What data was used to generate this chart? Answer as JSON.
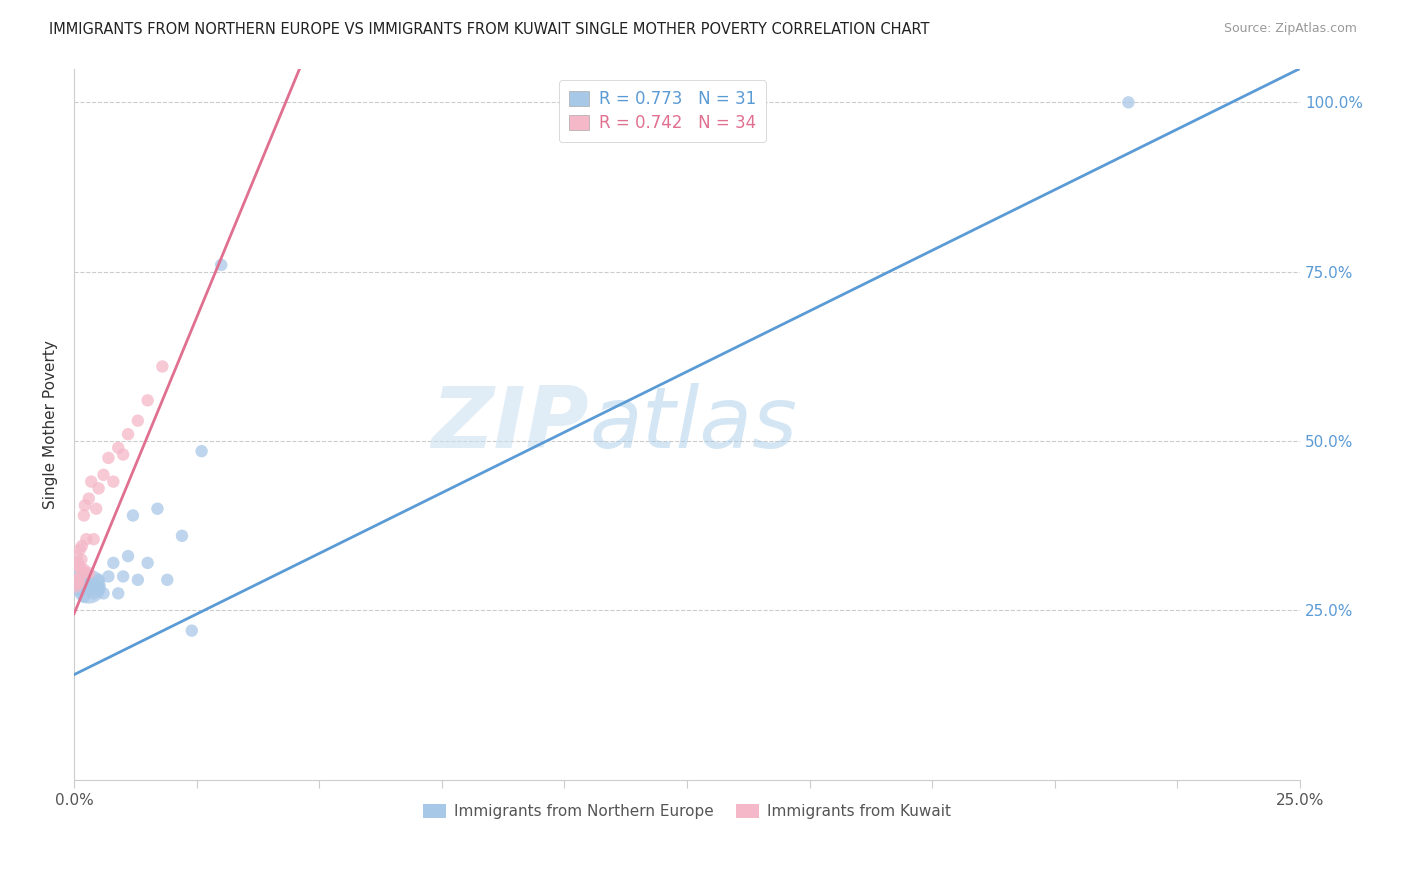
{
  "title": "IMMIGRANTS FROM NORTHERN EUROPE VS IMMIGRANTS FROM KUWAIT SINGLE MOTHER POVERTY CORRELATION CHART",
  "source": "Source: ZipAtlas.com",
  "ylabel": "Single Mother Poverty",
  "watermark_zip": "ZIP",
  "watermark_atlas": "atlas",
  "legend_blue_text": "R = 0.773   N = 31",
  "legend_pink_text": "R = 0.742   N = 34",
  "legend_label_blue": "Immigrants from Northern Europe",
  "legend_label_pink": "Immigrants from Kuwait",
  "blue_color": "#a8c8e8",
  "pink_color": "#f4b8c8",
  "line_blue": "#5b9bd5",
  "line_pink": "#e07090",
  "legend_r_blue": "#5b9bd5",
  "legend_r_pink": "#e07090",
  "blue_scatter_x": [
    0.0005,
    0.001,
    0.001,
    0.0015,
    0.002,
    0.002,
    0.002,
    0.003,
    0.003,
    0.003,
    0.004,
    0.004,
    0.005,
    0.005,
    0.005,
    0.006,
    0.007,
    0.008,
    0.009,
    0.01,
    0.011,
    0.012,
    0.013,
    0.015,
    0.017,
    0.019,
    0.022,
    0.024,
    0.026,
    0.03,
    0.215
  ],
  "blue_scatter_y": [
    0.295,
    0.295,
    0.28,
    0.29,
    0.285,
    0.295,
    0.27,
    0.285,
    0.28,
    0.29,
    0.275,
    0.29,
    0.285,
    0.295,
    0.28,
    0.275,
    0.3,
    0.32,
    0.275,
    0.3,
    0.33,
    0.39,
    0.295,
    0.32,
    0.4,
    0.295,
    0.36,
    0.22,
    0.485,
    0.76,
    1.0
  ],
  "blue_scatter_sizes": [
    200,
    80,
    80,
    80,
    80,
    80,
    80,
    600,
    80,
    80,
    80,
    80,
    80,
    80,
    80,
    80,
    80,
    80,
    80,
    80,
    80,
    80,
    80,
    80,
    80,
    80,
    80,
    80,
    80,
    80,
    80
  ],
  "pink_scatter_x": [
    0.0002,
    0.0003,
    0.0004,
    0.0005,
    0.0006,
    0.0007,
    0.0008,
    0.0009,
    0.001,
    0.001,
    0.0012,
    0.0014,
    0.0015,
    0.0016,
    0.0018,
    0.002,
    0.002,
    0.0022,
    0.0025,
    0.003,
    0.003,
    0.0035,
    0.004,
    0.0045,
    0.005,
    0.006,
    0.007,
    0.008,
    0.009,
    0.01,
    0.011,
    0.013,
    0.015,
    0.018
  ],
  "pink_scatter_y": [
    0.295,
    0.285,
    0.29,
    0.33,
    0.29,
    0.295,
    0.32,
    0.29,
    0.315,
    0.295,
    0.34,
    0.31,
    0.325,
    0.345,
    0.305,
    0.39,
    0.31,
    0.405,
    0.355,
    0.415,
    0.305,
    0.44,
    0.355,
    0.4,
    0.43,
    0.45,
    0.475,
    0.44,
    0.49,
    0.48,
    0.51,
    0.53,
    0.56,
    0.61
  ],
  "pink_scatter_sizes": [
    80,
    80,
    80,
    80,
    80,
    80,
    80,
    80,
    80,
    80,
    80,
    80,
    80,
    80,
    80,
    80,
    80,
    80,
    80,
    80,
    80,
    80,
    80,
    80,
    80,
    80,
    80,
    80,
    80,
    80,
    80,
    80,
    80,
    80
  ],
  "blue_line_x": [
    0.0,
    0.25
  ],
  "blue_line_y": [
    0.155,
    1.05
  ],
  "pink_line_x": [
    0.0,
    0.046
  ],
  "pink_line_y": [
    0.245,
    1.05
  ],
  "xlim": [
    0.0,
    0.25
  ],
  "ylim": [
    0.0,
    1.05
  ],
  "xtick_positions": [
    0.0,
    0.025,
    0.05,
    0.075,
    0.1,
    0.125,
    0.15,
    0.175,
    0.2,
    0.225,
    0.25
  ],
  "ytick_positions": [
    0.0,
    0.25,
    0.5,
    0.75,
    1.0
  ],
  "ytick_labels": [
    "",
    "25.0%",
    "50.0%",
    "75.0%",
    "100.0%"
  ],
  "background_color": "#ffffff",
  "grid_color": "#cccccc",
  "spine_color": "#cccccc"
}
